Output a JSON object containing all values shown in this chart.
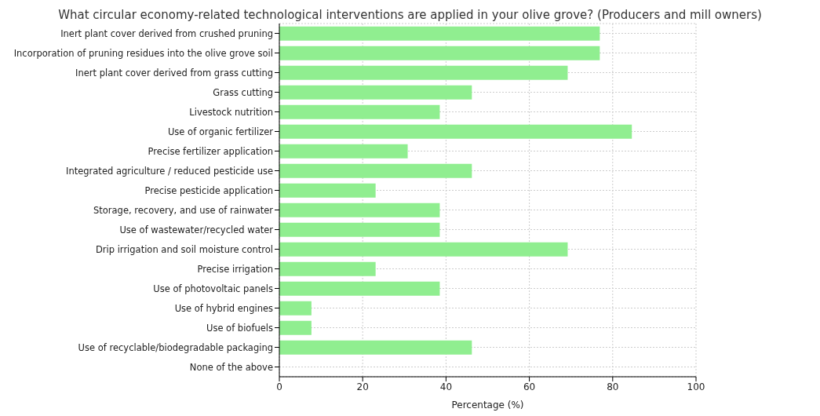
{
  "chart_data": {
    "type": "bar",
    "orientation": "horizontal",
    "title": "What circular economy-related technological interventions are applied in your olive grove? (Producers and mill owners)",
    "xlabel": "Percentage (%)",
    "categories": [
      "Inert plant cover derived from crushed pruning",
      "Incorporation of pruning residues into the olive grove soil",
      "Inert plant cover derived from grass cutting",
      "Grass cutting",
      "Livestock nutrition",
      "Use of organic fertilizer",
      "Precise fertilizer application",
      "Integrated agriculture / reduced pesticide use",
      "Precise pesticide application",
      "Storage, recovery, and use of rainwater",
      "Use of wastewater/recycled water",
      "Drip irrigation and soil moisture control",
      "Precise irrigation",
      "Use of photovoltaic panels",
      "Use of hybrid engines",
      "Use of biofuels",
      "Use of recyclable/biodegradable packaging",
      "None of the above"
    ],
    "values": [
      76.9,
      76.9,
      69.2,
      46.2,
      38.5,
      84.6,
      30.8,
      46.2,
      23.1,
      38.5,
      38.5,
      69.2,
      23.1,
      38.5,
      7.7,
      7.7,
      46.2,
      0
    ],
    "color": "#90ee90",
    "xlim": [
      0,
      100
    ],
    "xticks": [
      0,
      20,
      40,
      60,
      80,
      100
    ],
    "grid": true
  }
}
